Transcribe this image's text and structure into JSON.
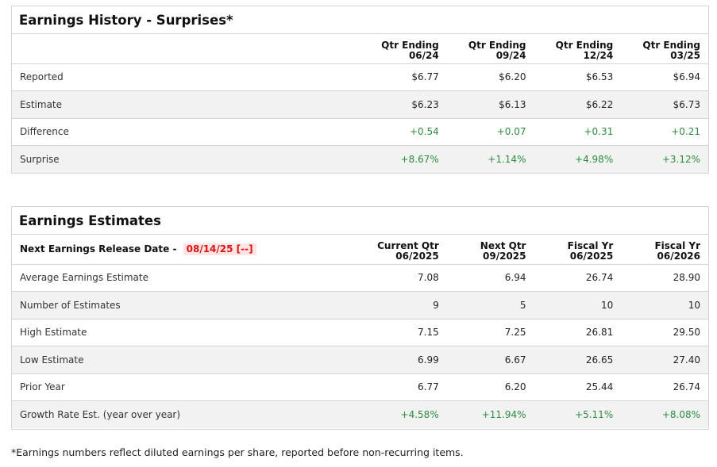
{
  "history": {
    "title": "Earnings History - Surprises*",
    "columns": [
      {
        "line1": "Qtr Ending",
        "line2": "06/24"
      },
      {
        "line1": "Qtr Ending",
        "line2": "09/24"
      },
      {
        "line1": "Qtr Ending",
        "line2": "12/24"
      },
      {
        "line1": "Qtr Ending",
        "line2": "03/25"
      }
    ],
    "rows": [
      {
        "label": "Reported",
        "values": [
          "$6.77",
          "$6.20",
          "$6.53",
          "$6.94"
        ]
      },
      {
        "label": "Estimate",
        "values": [
          "$6.23",
          "$6.13",
          "$6.22",
          "$6.73"
        ]
      },
      {
        "label": "Difference",
        "values": [
          "+0.54",
          "+0.07",
          "+0.31",
          "+0.21"
        ]
      },
      {
        "label": "Surprise",
        "values": [
          "+8.67%",
          "+1.14%",
          "+4.98%",
          "+3.12%"
        ]
      }
    ]
  },
  "estimates": {
    "title": "Earnings Estimates",
    "release_label": "Next Earnings Release Date - ",
    "release_date": "08/14/25 [--]",
    "columns": [
      {
        "line1": "Current Qtr",
        "line2": "06/2025"
      },
      {
        "line1": "Next Qtr",
        "line2": "09/2025"
      },
      {
        "line1": "Fiscal Yr",
        "line2": "06/2025"
      },
      {
        "line1": "Fiscal Yr",
        "line2": "06/2026"
      }
    ],
    "rows": [
      {
        "label": "Average Earnings Estimate",
        "values": [
          "7.08",
          "6.94",
          "26.74",
          "28.90"
        ]
      },
      {
        "label": "Number of Estimates",
        "values": [
          "9",
          "5",
          "10",
          "10"
        ]
      },
      {
        "label": "High Estimate",
        "values": [
          "7.15",
          "7.25",
          "26.81",
          "29.50"
        ]
      },
      {
        "label": "Low Estimate",
        "values": [
          "6.99",
          "6.67",
          "26.65",
          "27.40"
        ]
      },
      {
        "label": "Prior Year",
        "values": [
          "6.77",
          "6.20",
          "25.44",
          "26.74"
        ]
      },
      {
        "label": "Growth Rate Est. (year over year)",
        "values": [
          "+4.58%",
          "+11.94%",
          "+5.11%",
          "+8.08%"
        ]
      }
    ]
  },
  "footnote": "*Earnings numbers reflect diluted earnings per share, reported before non-recurring items.",
  "colors": {
    "positive": "#2e8b3f",
    "release_date": "#dd1111",
    "release_date_bg": "#fde4e4",
    "border": "#d4d4d4",
    "row_alt": "#f2f2f2"
  }
}
